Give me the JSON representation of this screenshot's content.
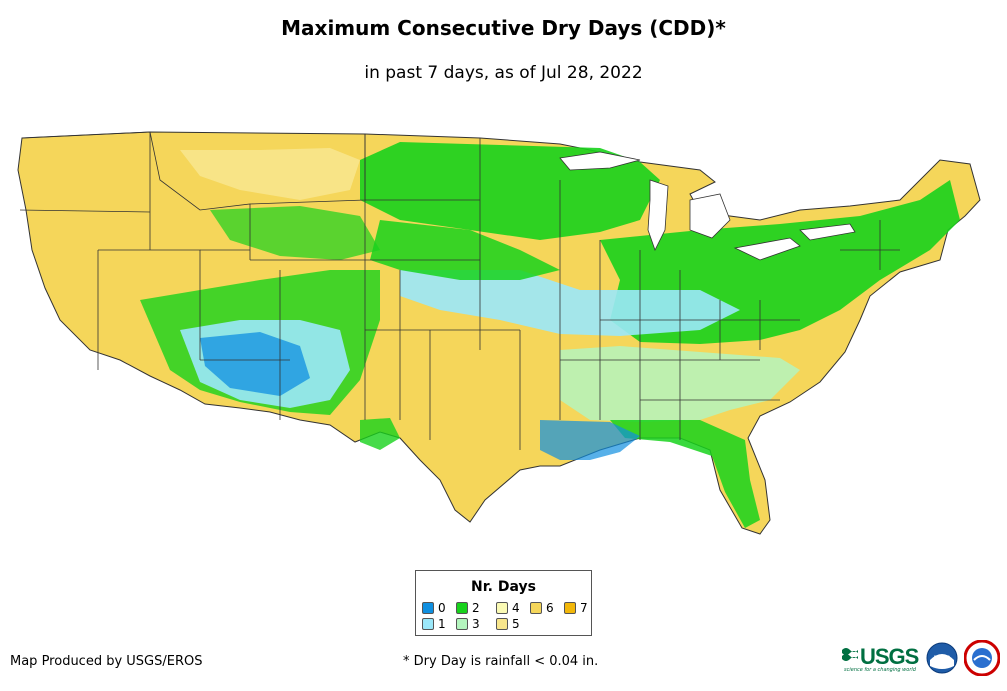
{
  "header": {
    "title": "Maximum Consecutive Dry Days (CDD)*",
    "subtitle": "in past 7 days, as of Jul 28, 2022"
  },
  "legend": {
    "title": "Nr. Days",
    "items": [
      {
        "label": "0",
        "color": "#0f8fe0"
      },
      {
        "label": "2",
        "color": "#18d21c"
      },
      {
        "label": "4",
        "color": "#fafab4"
      },
      {
        "label": "6",
        "color": "#f5d65a"
      },
      {
        "label": "7",
        "color": "#f2b70a"
      },
      {
        "label": "1",
        "color": "#9be8fa"
      },
      {
        "label": "3",
        "color": "#b4f5be"
      },
      {
        "label": "5",
        "color": "#f8e68c"
      }
    ]
  },
  "map": {
    "region": "Contiguous United States",
    "base_color": "#f5d65a"
  },
  "footer": {
    "credit": "Map Produced by USGS/EROS",
    "footnote": "* Dry Day is rainfall < 0.04 in."
  },
  "logos": {
    "usgs": "USGS",
    "usgs_tagline": "science for a changing world",
    "noaa": "noaa",
    "nws_icon": "nws-logo-icon"
  }
}
